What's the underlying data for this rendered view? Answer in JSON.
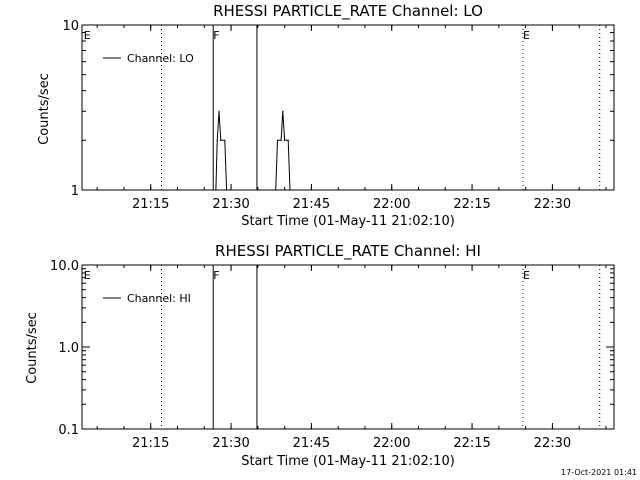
{
  "chart_data": [
    {
      "type": "line",
      "title": "RHESSI PARTICLE_RATE Channel: LO",
      "xlabel": "Start Time (01-May-11 21:02:10)",
      "ylabel": "Counts/sec",
      "yscale": "log",
      "ylim": [
        1,
        10
      ],
      "ytick_labels": [
        "1",
        "10"
      ],
      "xlim": [
        "21:02:10",
        "22:41:30"
      ],
      "xtick_labels": [
        "21:15",
        "21:30",
        "21:45",
        "22:00",
        "22:15",
        "22:30"
      ],
      "legend": {
        "placement": "top-left",
        "entries": [
          "Channel: LO"
        ]
      },
      "flags": [
        {
          "label": "E",
          "time": "21:02:30",
          "style": "none"
        },
        {
          "label": "",
          "time": "21:17:00",
          "style": "dotted"
        },
        {
          "label": "F",
          "time": "21:26:40",
          "style": "solid"
        },
        {
          "label": "",
          "time": "21:34:50",
          "style": "solid"
        },
        {
          "label": "E",
          "time": "22:24:30",
          "style": "dotted"
        },
        {
          "label": "",
          "time": "22:38:50",
          "style": "dotted"
        }
      ],
      "series": [
        {
          "points": [
            [
              "21:27:10",
              1
            ],
            [
              "21:27:25",
              2
            ],
            [
              "21:27:45",
              3
            ],
            [
              "21:28:05",
              2
            ],
            [
              "21:28:50",
              2
            ],
            [
              "21:29:10",
              1
            ],
            [
              "21:38:20",
              1
            ],
            [
              "21:38:40",
              2
            ],
            [
              "21:39:20",
              2
            ],
            [
              "21:39:40",
              3
            ],
            [
              "21:40:00",
              2
            ],
            [
              "21:40:40",
              2
            ],
            [
              "21:41:00",
              1
            ]
          ]
        }
      ]
    },
    {
      "type": "line",
      "title": "RHESSI PARTICLE_RATE Channel: HI",
      "xlabel": "Start Time (01-May-11 21:02:10)",
      "ylabel": "Counts/sec",
      "yscale": "log",
      "ylim": [
        0.1,
        10
      ],
      "ytick_labels": [
        "0.1",
        "1.0",
        "10.0"
      ],
      "xlim": [
        "21:02:10",
        "22:41:30"
      ],
      "xtick_labels": [
        "21:15",
        "21:30",
        "21:45",
        "22:00",
        "22:15",
        "22:30"
      ],
      "legend": {
        "placement": "top-left",
        "entries": [
          "Channel: HI"
        ]
      },
      "flags": [
        {
          "label": "E",
          "time": "21:02:30",
          "style": "none"
        },
        {
          "label": "",
          "time": "21:17:00",
          "style": "dotted"
        },
        {
          "label": "F",
          "time": "21:26:40",
          "style": "solid"
        },
        {
          "label": "",
          "time": "21:34:50",
          "style": "solid"
        },
        {
          "label": "E",
          "time": "22:24:30",
          "style": "dotted"
        },
        {
          "label": "",
          "time": "22:38:50",
          "style": "dotted"
        }
      ],
      "series": [
        {
          "points": []
        }
      ]
    }
  ],
  "footer": {
    "timestamp": "17-Oct-2021 01:41"
  }
}
